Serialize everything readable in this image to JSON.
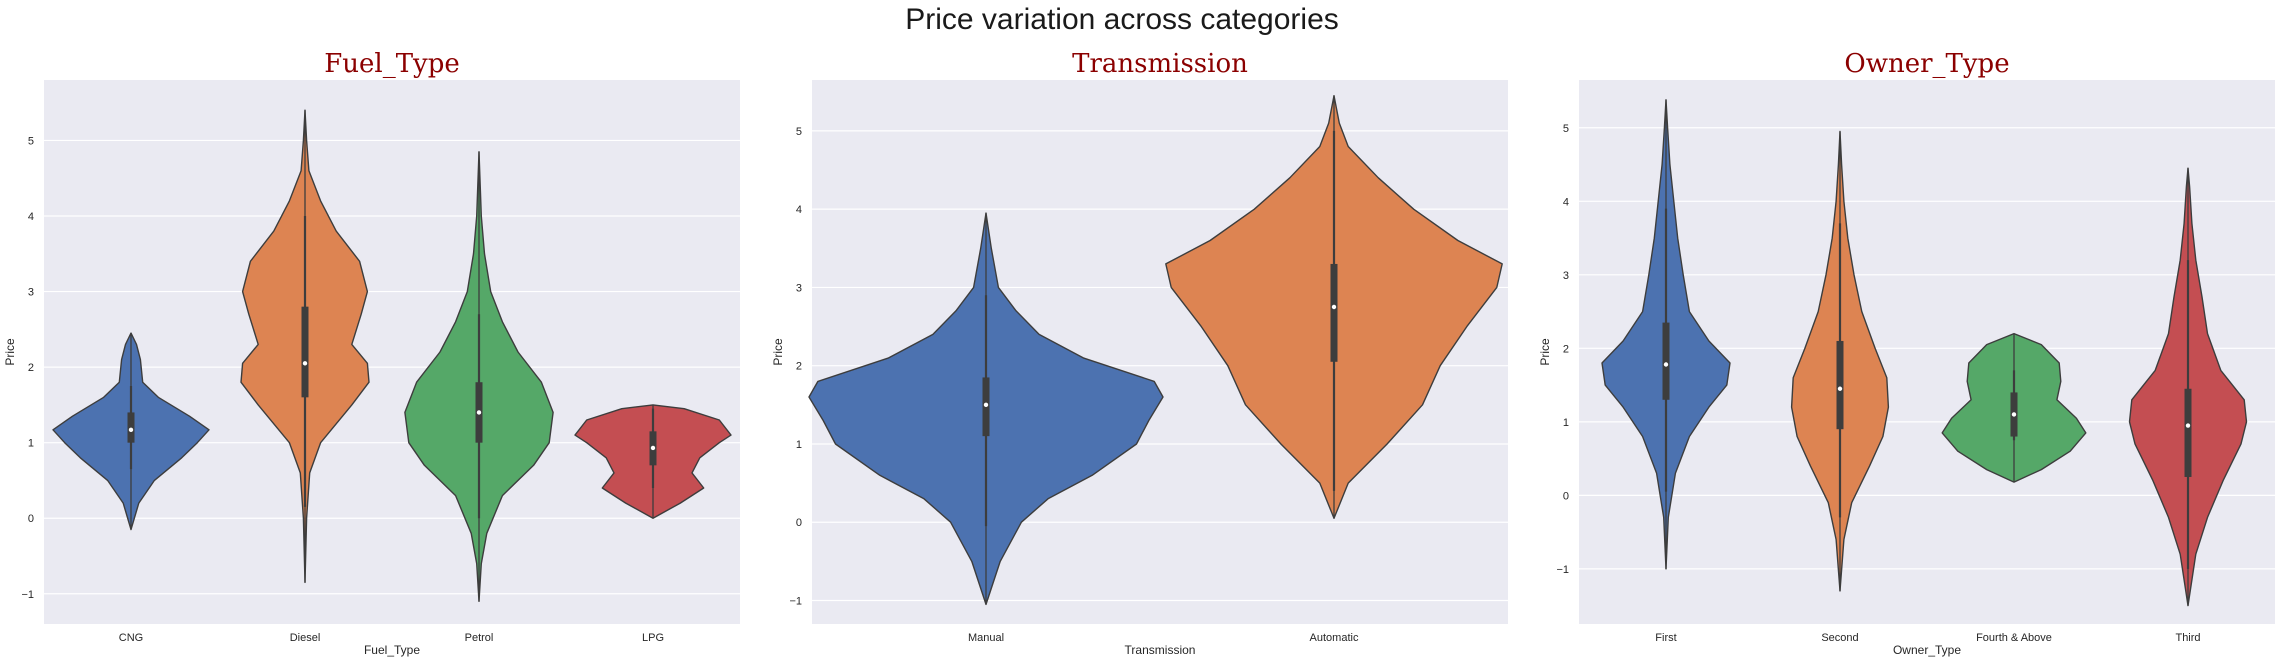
{
  "figure_title": "Price variation across categories",
  "chart_data": [
    {
      "type": "violin",
      "title": "Fuel_Type",
      "xlabel": "Fuel_Type",
      "ylabel": "Price",
      "ylim": [
        -1.4,
        5.8
      ],
      "yticks": [
        -1,
        0,
        1,
        2,
        3,
        4,
        5
      ],
      "grid": true,
      "categories": [
        "CNG",
        "Diesel",
        "Petrol",
        "LPG"
      ],
      "colors": [
        "#4c72b0",
        "#dd8452",
        "#55a868",
        "#c44e52"
      ],
      "violins": [
        {
          "name": "CNG",
          "min": -0.15,
          "max": 2.45,
          "q1": 1.0,
          "median": 1.17,
          "q3": 1.4,
          "whisker_low": 0.65,
          "whisker_high": 1.75,
          "profile": [
            [
              -0.15,
              0.0
            ],
            [
              0.2,
              0.1
            ],
            [
              0.5,
              0.3
            ],
            [
              0.8,
              0.65
            ],
            [
              1.0,
              0.85
            ],
            [
              1.17,
              1.0
            ],
            [
              1.35,
              0.75
            ],
            [
              1.6,
              0.35
            ],
            [
              1.8,
              0.15
            ],
            [
              2.1,
              0.12
            ],
            [
              2.3,
              0.07
            ],
            [
              2.45,
              0.0
            ]
          ]
        },
        {
          "name": "Diesel",
          "min": -0.85,
          "max": 5.4,
          "q1": 1.6,
          "median": 2.05,
          "q3": 2.8,
          "whisker_low": 0.15,
          "whisker_high": 4.0,
          "profile": [
            [
              -0.85,
              0.0
            ],
            [
              0.0,
              0.02
            ],
            [
              0.6,
              0.06
            ],
            [
              1.0,
              0.2
            ],
            [
              1.5,
              0.6
            ],
            [
              1.8,
              0.82
            ],
            [
              2.05,
              0.8
            ],
            [
              2.3,
              0.6
            ],
            [
              2.7,
              0.72
            ],
            [
              3.0,
              0.8
            ],
            [
              3.4,
              0.7
            ],
            [
              3.8,
              0.4
            ],
            [
              4.2,
              0.2
            ],
            [
              4.6,
              0.05
            ],
            [
              5.0,
              0.02
            ],
            [
              5.4,
              0.0
            ]
          ]
        },
        {
          "name": "Petrol",
          "min": -1.1,
          "max": 4.85,
          "q1": 1.0,
          "median": 1.4,
          "q3": 1.8,
          "whisker_low": 0.0,
          "whisker_high": 2.7,
          "profile": [
            [
              -1.1,
              0.0
            ],
            [
              -0.6,
              0.03
            ],
            [
              -0.2,
              0.1
            ],
            [
              0.3,
              0.3
            ],
            [
              0.7,
              0.7
            ],
            [
              1.0,
              0.9
            ],
            [
              1.4,
              0.95
            ],
            [
              1.8,
              0.8
            ],
            [
              2.2,
              0.5
            ],
            [
              2.6,
              0.3
            ],
            [
              3.0,
              0.15
            ],
            [
              3.5,
              0.07
            ],
            [
              4.0,
              0.03
            ],
            [
              4.85,
              0.0
            ]
          ]
        },
        {
          "name": "LPG",
          "min": 0.0,
          "max": 1.5,
          "q1": 0.7,
          "median": 0.93,
          "q3": 1.15,
          "whisker_low": 0.4,
          "whisker_high": 1.45,
          "profile": [
            [
              0.0,
              0.0
            ],
            [
              0.2,
              0.35
            ],
            [
              0.4,
              0.65
            ],
            [
              0.6,
              0.5
            ],
            [
              0.8,
              0.6
            ],
            [
              1.0,
              0.85
            ],
            [
              1.1,
              1.0
            ],
            [
              1.3,
              0.85
            ],
            [
              1.45,
              0.4
            ],
            [
              1.5,
              0.0
            ]
          ]
        }
      ]
    },
    {
      "type": "violin",
      "title": "Transmission",
      "xlabel": "Transmission",
      "ylabel": "Price",
      "ylim": [
        -1.3,
        5.65
      ],
      "yticks": [
        -1,
        0,
        1,
        2,
        3,
        4,
        5
      ],
      "grid": true,
      "categories": [
        "Manual",
        "Automatic"
      ],
      "colors": [
        "#4c72b0",
        "#dd8452"
      ],
      "violins": [
        {
          "name": "Manual",
          "min": -1.05,
          "max": 3.95,
          "q1": 1.1,
          "median": 1.5,
          "q3": 1.85,
          "whisker_low": -0.05,
          "whisker_high": 2.9,
          "profile": [
            [
              -1.05,
              0.0
            ],
            [
              -0.5,
              0.08
            ],
            [
              0.0,
              0.2
            ],
            [
              0.3,
              0.35
            ],
            [
              0.6,
              0.6
            ],
            [
              1.0,
              0.85
            ],
            [
              1.3,
              0.92
            ],
            [
              1.6,
              1.0
            ],
            [
              1.8,
              0.95
            ],
            [
              2.1,
              0.55
            ],
            [
              2.4,
              0.3
            ],
            [
              2.7,
              0.17
            ],
            [
              3.0,
              0.07
            ],
            [
              3.5,
              0.03
            ],
            [
              3.95,
              0.0
            ]
          ]
        },
        {
          "name": "Automatic",
          "min": 0.05,
          "max": 5.45,
          "q1": 2.05,
          "median": 2.75,
          "q3": 3.3,
          "whisker_low": 0.4,
          "whisker_high": 5.0,
          "profile": [
            [
              0.05,
              0.0
            ],
            [
              0.5,
              0.08
            ],
            [
              1.0,
              0.3
            ],
            [
              1.5,
              0.5
            ],
            [
              2.0,
              0.6
            ],
            [
              2.5,
              0.75
            ],
            [
              3.0,
              0.92
            ],
            [
              3.3,
              0.95
            ],
            [
              3.6,
              0.7
            ],
            [
              4.0,
              0.45
            ],
            [
              4.4,
              0.25
            ],
            [
              4.8,
              0.08
            ],
            [
              5.1,
              0.03
            ],
            [
              5.45,
              0.0
            ]
          ]
        }
      ]
    },
    {
      "type": "violin",
      "title": "Owner_Type",
      "xlabel": "Owner_Type",
      "ylabel": "Price",
      "ylim": [
        -1.75,
        5.65
      ],
      "yticks": [
        -1,
        0,
        1,
        2,
        3,
        4,
        5
      ],
      "grid": true,
      "categories": [
        "First",
        "Second",
        "Fourth & Above",
        "Third"
      ],
      "colors": [
        "#4c72b0",
        "#dd8452",
        "#55a868",
        "#c44e52"
      ],
      "violins": [
        {
          "name": "First",
          "min": -1.0,
          "max": 5.38,
          "q1": 1.3,
          "median": 1.78,
          "q3": 2.35,
          "whisker_low": 0.05,
          "whisker_high": 3.9,
          "profile": [
            [
              -1.0,
              0.0
            ],
            [
              -0.3,
              0.03
            ],
            [
              0.3,
              0.12
            ],
            [
              0.8,
              0.3
            ],
            [
              1.2,
              0.55
            ],
            [
              1.5,
              0.78
            ],
            [
              1.8,
              0.82
            ],
            [
              2.1,
              0.55
            ],
            [
              2.5,
              0.3
            ],
            [
              3.0,
              0.22
            ],
            [
              3.5,
              0.15
            ],
            [
              4.0,
              0.1
            ],
            [
              4.5,
              0.05
            ],
            [
              5.0,
              0.02
            ],
            [
              5.38,
              0.0
            ]
          ]
        },
        {
          "name": "Second",
          "min": -1.3,
          "max": 4.95,
          "q1": 0.9,
          "median": 1.45,
          "q3": 2.1,
          "whisker_low": -0.3,
          "whisker_high": 3.7,
          "profile": [
            [
              -1.3,
              0.0
            ],
            [
              -0.6,
              0.05
            ],
            [
              -0.1,
              0.15
            ],
            [
              0.4,
              0.38
            ],
            [
              0.8,
              0.55
            ],
            [
              1.2,
              0.62
            ],
            [
              1.6,
              0.6
            ],
            [
              2.0,
              0.45
            ],
            [
              2.5,
              0.28
            ],
            [
              3.0,
              0.18
            ],
            [
              3.5,
              0.1
            ],
            [
              4.0,
              0.05
            ],
            [
              4.5,
              0.02
            ],
            [
              4.95,
              0.0
            ]
          ]
        },
        {
          "name": "Fourth & Above",
          "min": 0.18,
          "max": 2.2,
          "q1": 0.8,
          "median": 1.1,
          "q3": 1.4,
          "whisker_low": 0.75,
          "whisker_high": 1.7,
          "profile": [
            [
              0.18,
              0.0
            ],
            [
              0.35,
              0.35
            ],
            [
              0.6,
              0.72
            ],
            [
              0.85,
              0.92
            ],
            [
              1.05,
              0.8
            ],
            [
              1.3,
              0.55
            ],
            [
              1.55,
              0.6
            ],
            [
              1.8,
              0.58
            ],
            [
              2.05,
              0.35
            ],
            [
              2.2,
              0.0
            ]
          ]
        },
        {
          "name": "Third",
          "min": -1.5,
          "max": 4.45,
          "q1": 0.25,
          "median": 0.95,
          "q3": 1.45,
          "whisker_low": -1.0,
          "whisker_high": 3.2,
          "profile": [
            [
              -1.5,
              0.0
            ],
            [
              -0.8,
              0.1
            ],
            [
              -0.3,
              0.25
            ],
            [
              0.2,
              0.45
            ],
            [
              0.7,
              0.68
            ],
            [
              1.0,
              0.75
            ],
            [
              1.3,
              0.72
            ],
            [
              1.7,
              0.42
            ],
            [
              2.2,
              0.25
            ],
            [
              2.7,
              0.18
            ],
            [
              3.2,
              0.1
            ],
            [
              3.7,
              0.05
            ],
            [
              4.2,
              0.02
            ],
            [
              4.45,
              0.0
            ]
          ]
        }
      ]
    }
  ]
}
